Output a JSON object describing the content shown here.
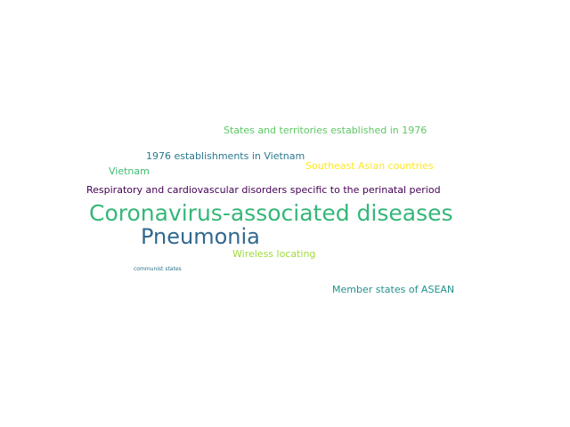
{
  "word_cloud": {
    "words": [
      {
        "text": "States and territories established in 1976",
        "color": "#5cc863"
      },
      {
        "text": "1976 establishments in Vietnam",
        "color": "#2a788e"
      },
      {
        "text": "Vietnam",
        "color": "#3fbc73"
      },
      {
        "text": "Southeast Asian countries",
        "color": "#fde725"
      },
      {
        "text": "Respiratory and cardiovascular disorders specific to the perinatal period",
        "color": "#440154"
      },
      {
        "text": "Coronavirus-associated diseases",
        "color": "#35b779"
      },
      {
        "text": "Pneumonia",
        "color": "#31688e"
      },
      {
        "text": "Wireless locating",
        "color": "#a0da39"
      },
      {
        "text": "communist states",
        "color": "#2c728e"
      },
      {
        "text": "Member states of ASEAN",
        "color": "#21918c"
      }
    ]
  }
}
